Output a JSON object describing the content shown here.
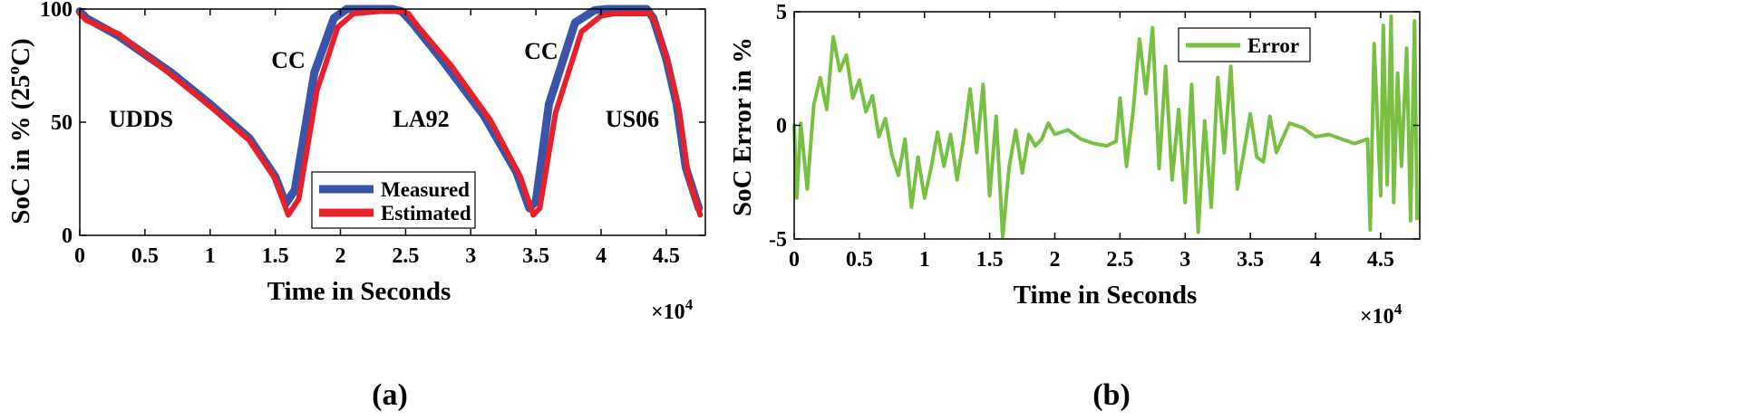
{
  "chart_data": [
    {
      "type": "line",
      "panel_label": "(a)",
      "xlabel": "Time in Seconds",
      "ylabel": "SoC in % (25°C)",
      "ylabel_parts": {
        "main": "SoC in % (25",
        "sup": "o",
        "end": "C)"
      },
      "x_multiplier": "×10",
      "x_multiplier_base": "×10",
      "x_multiplier_exp": "4",
      "xlim": [
        0,
        4.8
      ],
      "ylim": [
        0,
        100
      ],
      "xticks": [
        0,
        0.5,
        1,
        1.5,
        2,
        2.5,
        3,
        3.5,
        4,
        4.5
      ],
      "xtick_labels": [
        "0",
        "0.5",
        "1",
        "1.5",
        "2",
        "2.5",
        "3",
        "3.5",
        "4",
        "4.5"
      ],
      "yticks": [
        0,
        50,
        100
      ],
      "ytick_labels": [
        "0",
        "50",
        "100"
      ],
      "legend": {
        "location": "bottom-right",
        "entries": [
          "Measured",
          "Estimated"
        ]
      },
      "annotations": [
        {
          "text": "UDDS",
          "x": 0.47,
          "y": 48
        },
        {
          "text": "CC",
          "x": 1.6,
          "y": 74
        },
        {
          "text": "LA92",
          "x": 2.62,
          "y": 48
        },
        {
          "text": "CC",
          "x": 3.54,
          "y": 78
        },
        {
          "text": "US06",
          "x": 4.24,
          "y": 48
        }
      ],
      "series": [
        {
          "name": "Measured",
          "color": "#3a55a8",
          "x": [
            0,
            0.05,
            0.3,
            0.7,
            1.0,
            1.3,
            1.5,
            1.58,
            1.65,
            1.8,
            1.95,
            2.05,
            2.2,
            2.4,
            2.47,
            2.55,
            2.8,
            3.1,
            3.35,
            3.45,
            3.5,
            3.6,
            3.8,
            3.95,
            4.05,
            4.2,
            4.35,
            4.4,
            4.5,
            4.58,
            4.65,
            4.75
          ],
          "y": [
            99,
            96,
            88,
            72,
            58,
            43,
            26,
            14,
            20,
            72,
            96,
            100,
            100,
            100,
            99,
            94,
            76,
            53,
            28,
            12,
            15,
            58,
            94,
            99.5,
            100,
            100,
            100,
            96,
            78,
            58,
            30,
            12
          ]
        },
        {
          "name": "Estimated",
          "color": "#e8202a",
          "x": [
            0,
            0.05,
            0.3,
            0.7,
            1.0,
            1.3,
            1.5,
            1.6,
            1.68,
            1.82,
            1.98,
            2.1,
            2.3,
            2.47,
            2.52,
            2.6,
            2.85,
            3.15,
            3.38,
            3.48,
            3.53,
            3.65,
            3.85,
            4.0,
            4.1,
            4.3,
            4.38,
            4.43,
            4.52,
            4.6,
            4.67,
            4.76
          ],
          "y": [
            98,
            95,
            89,
            71,
            57,
            42,
            25,
            9,
            16,
            64,
            92,
            98,
            99,
            99,
            98,
            92,
            75,
            51,
            26,
            9,
            12,
            54,
            90,
            97,
            98,
            98,
            98,
            92,
            75,
            55,
            26,
            9
          ]
        }
      ]
    },
    {
      "type": "line",
      "panel_label": "(b)",
      "xlabel": "Time in Seconds",
      "ylabel": "SoC Error in %",
      "x_multiplier": "×10",
      "x_multiplier_base": "×10",
      "x_multiplier_exp": "4",
      "xlim": [
        0,
        4.8
      ],
      "ylim": [
        -5,
        5
      ],
      "xticks": [
        0,
        0.5,
        1,
        1.5,
        2,
        2.5,
        3,
        3.5,
        4,
        4.5
      ],
      "xtick_labels": [
        "0",
        "0.5",
        "1",
        "1.5",
        "2",
        "2.5",
        "3",
        "3.5",
        "4",
        "4.5"
      ],
      "yticks": [
        -5,
        0,
        5
      ],
      "ytick_labels": [
        "-5",
        "0",
        "5"
      ],
      "legend": {
        "location": "top-center-right",
        "entries": [
          "Error"
        ]
      },
      "series": [
        {
          "name": "Error",
          "color": "#78c044",
          "x": [
            0,
            0.02,
            0.05,
            0.1,
            0.15,
            0.2,
            0.25,
            0.3,
            0.35,
            0.4,
            0.45,
            0.5,
            0.55,
            0.6,
            0.65,
            0.7,
            0.75,
            0.8,
            0.85,
            0.9,
            0.95,
            1.0,
            1.05,
            1.1,
            1.15,
            1.2,
            1.25,
            1.3,
            1.35,
            1.4,
            1.45,
            1.5,
            1.55,
            1.6,
            1.65,
            1.7,
            1.75,
            1.8,
            1.85,
            1.9,
            1.95,
            2.0,
            2.1,
            2.2,
            2.3,
            2.4,
            2.47,
            2.5,
            2.55,
            2.6,
            2.65,
            2.7,
            2.75,
            2.8,
            2.85,
            2.9,
            2.95,
            3.0,
            3.05,
            3.1,
            3.15,
            3.2,
            3.25,
            3.3,
            3.35,
            3.4,
            3.45,
            3.5,
            3.55,
            3.6,
            3.65,
            3.7,
            3.8,
            3.9,
            4.0,
            4.1,
            4.2,
            4.3,
            4.4,
            4.42,
            4.45,
            4.5,
            4.52,
            4.55,
            4.58,
            4.6,
            4.63,
            4.66,
            4.7,
            4.73,
            4.76,
            4.78
          ],
          "y": [
            0,
            -3.2,
            0.1,
            -2.8,
            0.9,
            2.1,
            0.7,
            3.9,
            2.4,
            3.1,
            1.2,
            2.0,
            0.6,
            1.3,
            -0.5,
            0.3,
            -1.3,
            -2.2,
            -0.6,
            -3.6,
            -1.4,
            -3.2,
            -1.9,
            -0.3,
            -1.8,
            -0.4,
            -2.4,
            -0.6,
            1.6,
            -1.2,
            1.8,
            -3.1,
            0.4,
            -4.9,
            -1.8,
            -0.2,
            -2.1,
            -0.4,
            -0.9,
            -0.6,
            0.1,
            -0.4,
            -0.2,
            -0.6,
            -0.8,
            -0.9,
            -0.7,
            1.2,
            -1.8,
            0.6,
            3.8,
            1.4,
            4.3,
            -1.9,
            2.6,
            -2.4,
            0.7,
            -3.4,
            1.8,
            -4.7,
            0.2,
            -3.6,
            2.1,
            -1.2,
            2.6,
            -2.8,
            -1.2,
            0.5,
            -1.4,
            -1.6,
            0.4,
            -1.2,
            0.1,
            -0.1,
            -0.5,
            -0.4,
            -0.6,
            -0.8,
            -0.6,
            -4.6,
            3.6,
            -3.1,
            4.4,
            -2.6,
            4.8,
            -3.4,
            2.3,
            -1.8,
            3.4,
            -4.2,
            4.6,
            -4.1
          ]
        }
      ]
    }
  ]
}
